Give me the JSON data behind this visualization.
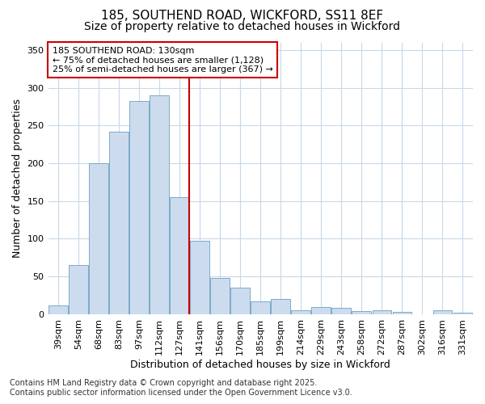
{
  "title_line1": "185, SOUTHEND ROAD, WICKFORD, SS11 8EF",
  "title_line2": "Size of property relative to detached houses in Wickford",
  "xlabel": "Distribution of detached houses by size in Wickford",
  "ylabel": "Number of detached properties",
  "categories": [
    "39sqm",
    "54sqm",
    "68sqm",
    "83sqm",
    "97sqm",
    "112sqm",
    "127sqm",
    "141sqm",
    "156sqm",
    "170sqm",
    "185sqm",
    "199sqm",
    "214sqm",
    "229sqm",
    "243sqm",
    "258sqm",
    "272sqm",
    "287sqm",
    "302sqm",
    "316sqm",
    "331sqm"
  ],
  "values": [
    12,
    65,
    200,
    242,
    282,
    290,
    155,
    97,
    48,
    35,
    17,
    20,
    5,
    10,
    9,
    4,
    5,
    3,
    0,
    5,
    2
  ],
  "bar_color": "#ccdcee",
  "bar_edge_color": "#7aaac8",
  "vline_color": "#cc0000",
  "vline_xindex": 6,
  "annotation_line1": "185 SOUTHEND ROAD: 130sqm",
  "annotation_line2": "← 75% of detached houses are smaller (1,128)",
  "annotation_line3": "25% of semi-detached houses are larger (367) →",
  "annotation_box_facecolor": "#ffffff",
  "annotation_box_edgecolor": "#cc0000",
  "ylim": [
    0,
    360
  ],
  "yticks": [
    0,
    50,
    100,
    150,
    200,
    250,
    300,
    350
  ],
  "bg_color": "#ffffff",
  "plot_bg_color": "#ffffff",
  "grid_color": "#c8d8e8",
  "footer_line1": "Contains HM Land Registry data © Crown copyright and database right 2025.",
  "footer_line2": "Contains public sector information licensed under the Open Government Licence v3.0.",
  "title1_fontsize": 11,
  "title2_fontsize": 10,
  "axis_label_fontsize": 9,
  "tick_fontsize": 8,
  "annot_fontsize": 8,
  "footer_fontsize": 7
}
